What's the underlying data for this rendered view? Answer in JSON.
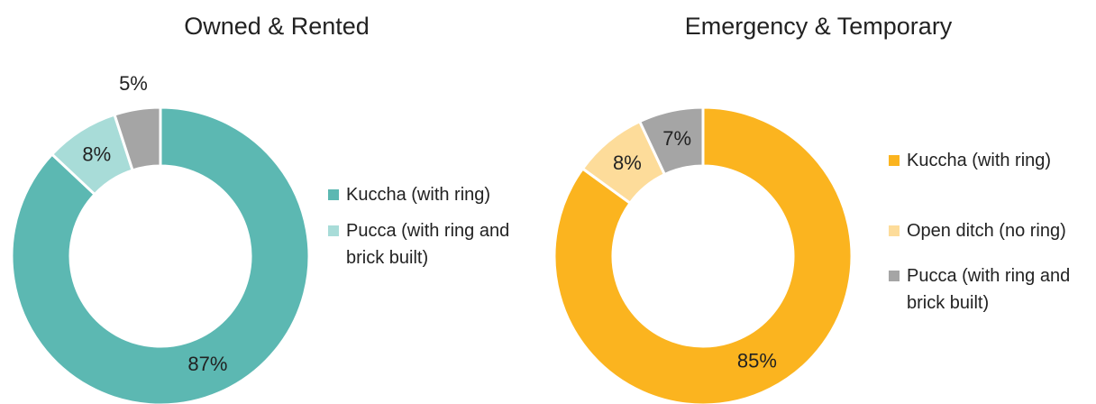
{
  "chart_data": [
    {
      "type": "donut",
      "title": "Owned & Rented",
      "categories": [
        "Kuccha (with ring)",
        "Pucca (with ring and brick built)",
        null
      ],
      "values": [
        87,
        8,
        5
      ],
      "value_labels": [
        "87%",
        "8%",
        "5%"
      ],
      "colors": [
        "#5cb8b2",
        "#a8dcd8",
        "#a5a5a5"
      ]
    },
    {
      "type": "donut",
      "title": "Emergency & Temporary",
      "categories": [
        "Kuccha (with ring)",
        "Open ditch (no ring)",
        "Pucca (with ring and brick built)"
      ],
      "values": [
        85,
        8,
        7
      ],
      "value_labels": [
        "85%",
        "8%",
        "7%"
      ],
      "colors": [
        "#fbb41f",
        "#fddc9a",
        "#a5a5a5"
      ]
    }
  ]
}
